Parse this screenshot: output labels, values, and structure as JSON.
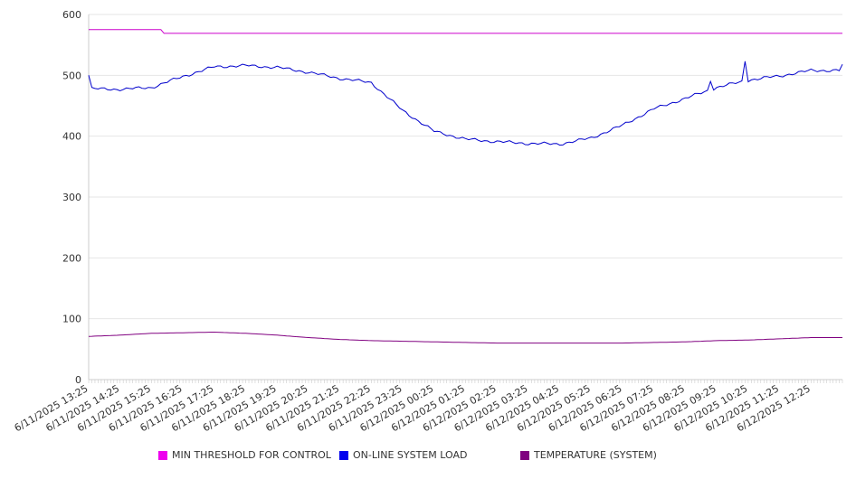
{
  "chart_data": {
    "type": "line",
    "x": [
      "6/11/2025 13:25",
      "6/11/2025 14:25",
      "6/11/2025 15:25",
      "6/11/2025 16:25",
      "6/11/2025 17:25",
      "6/11/2025 18:25",
      "6/11/2025 19:25",
      "6/11/2025 20:25",
      "6/11/2025 21:25",
      "6/11/2025 22:25",
      "6/11/2025 23:25",
      "6/12/2025 00:25",
      "6/12/2025 01:25",
      "6/12/2025 02:25",
      "6/12/2025 03:25",
      "6/12/2025 04:25",
      "6/12/2025 05:25",
      "6/12/2025 06:25",
      "6/12/2025 07:25",
      "6/12/2025 08:25",
      "6/12/2025 09:25",
      "6/12/2025 10:25",
      "6/12/2025 11:25",
      "6/12/2025 12:25"
    ],
    "ylim": [
      0,
      600
    ],
    "yticks": [
      0,
      100,
      200,
      300,
      400,
      500,
      600
    ],
    "grid": true,
    "legend_position": "bottom",
    "series": [
      {
        "name": "MIN THRESHOLD FOR CONTROL",
        "color": "#cc00cc",
        "values": [
          575,
          575,
          575,
          569,
          569,
          569,
          569,
          569,
          569,
          569,
          569,
          569,
          569,
          569,
          569,
          569,
          569,
          569,
          569,
          569,
          569,
          569,
          569,
          569
        ]
      },
      {
        "name": "ON-LINE SYSTEM LOAD",
        "color": "#0000cc",
        "values": [
          478,
          477,
          480,
          498,
          514,
          516,
          513,
          505,
          495,
          488,
          442,
          408,
          395,
          391,
          388,
          387,
          397,
          418,
          445,
          462,
          480,
          492,
          499,
          508
        ]
      },
      {
        "name": "TEMPERATURE (SYSTEM)",
        "color": "#800080",
        "values": [
          71,
          73,
          76,
          77,
          78,
          76,
          73,
          69,
          66,
          64,
          63,
          62,
          61,
          60,
          60,
          60,
          60,
          60,
          61,
          62,
          64,
          65,
          67,
          69
        ]
      }
    ]
  }
}
